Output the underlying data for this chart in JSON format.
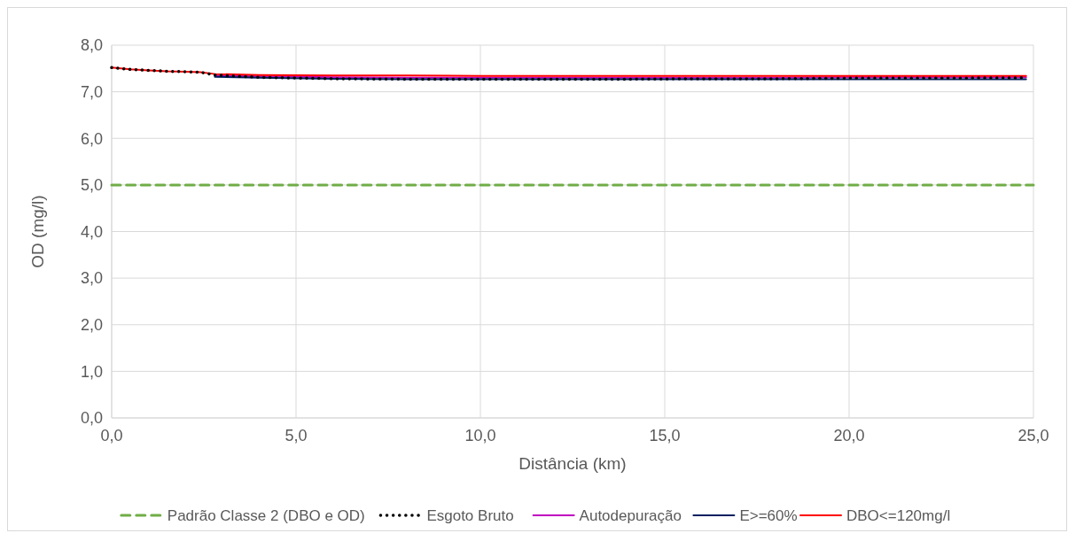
{
  "chart_data": {
    "type": "line",
    "xlabel": "Distância (km)",
    "ylabel": "OD (mg/l)",
    "xlim": [
      0,
      25
    ],
    "ylim": [
      0,
      8
    ],
    "xticks": [
      {
        "value": 0,
        "label": "0,0"
      },
      {
        "value": 5,
        "label": "5,0"
      },
      {
        "value": 10,
        "label": "10,0"
      },
      {
        "value": 15,
        "label": "15,0"
      },
      {
        "value": 20,
        "label": "20,0"
      },
      {
        "value": 25,
        "label": "25,0"
      }
    ],
    "yticks": [
      {
        "value": 0,
        "label": "0,0"
      },
      {
        "value": 1,
        "label": "1,0"
      },
      {
        "value": 2,
        "label": "2,0"
      },
      {
        "value": 3,
        "label": "3,0"
      },
      {
        "value": 4,
        "label": "4,0"
      },
      {
        "value": 5,
        "label": "5,0"
      },
      {
        "value": 6,
        "label": "6,0"
      },
      {
        "value": 7,
        "label": "7,0"
      },
      {
        "value": 8,
        "label": "8,0"
      }
    ],
    "grid": true,
    "legend": "bottom",
    "marker": "none",
    "series": [
      {
        "name": "Padrão Classe 2 (DBO e OD)",
        "color": "#70ad47",
        "line_style": "dashed",
        "x": [
          0,
          25
        ],
        "values": [
          5,
          5
        ]
      },
      {
        "name": "Esgoto Bruto",
        "color": "#000000",
        "line_style": "dotted",
        "x": [
          0,
          0.5,
          1,
          1.5,
          2,
          2.4,
          2.8,
          4,
          6,
          8,
          10,
          12,
          14,
          16,
          18,
          20,
          22,
          24.8
        ],
        "values": [
          7.52,
          7.48,
          7.46,
          7.44,
          7.43,
          7.42,
          7.36,
          7.31,
          7.28,
          7.27,
          7.27,
          7.27,
          7.27,
          7.28,
          7.28,
          7.29,
          7.29,
          7.3
        ]
      },
      {
        "name": "Autodepuração",
        "color": "#c000c0",
        "line_style": "solid",
        "x": [
          2.8,
          4,
          6,
          8,
          10,
          12,
          14,
          16,
          18,
          20,
          22,
          24.8
        ],
        "values": [
          7.34,
          7.33,
          7.31,
          7.3,
          7.3,
          7.3,
          7.3,
          7.3,
          7.3,
          7.31,
          7.31,
          7.31
        ]
      },
      {
        "name": "E>=60%",
        "color": "#002060",
        "line_style": "solid",
        "x": [
          2.8,
          4,
          6,
          8,
          10,
          12,
          14,
          16,
          18,
          20,
          22,
          24.8
        ],
        "values": [
          7.32,
          7.3,
          7.28,
          7.27,
          7.27,
          7.27,
          7.27,
          7.27,
          7.27,
          7.27,
          7.27,
          7.27
        ]
      },
      {
        "name": "DBO<=120mg/l",
        "color": "#ff0000",
        "line_style": "solid",
        "x": [
          0,
          0.5,
          1,
          1.5,
          2,
          2.4,
          2.8,
          4,
          6,
          8,
          10,
          12,
          14,
          16,
          18,
          20,
          22,
          24.8
        ],
        "values": [
          7.52,
          7.48,
          7.46,
          7.44,
          7.43,
          7.42,
          7.38,
          7.36,
          7.35,
          7.35,
          7.34,
          7.34,
          7.34,
          7.34,
          7.34,
          7.34,
          7.34,
          7.34
        ]
      }
    ]
  }
}
